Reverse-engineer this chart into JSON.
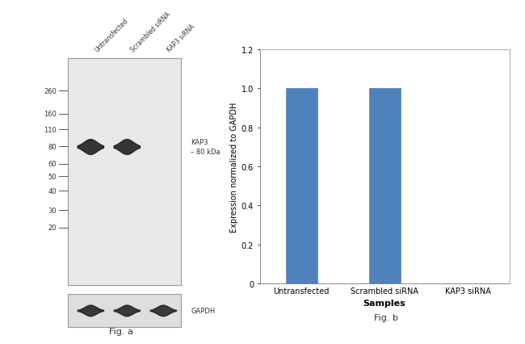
{
  "fig_a_label": "Fig. a",
  "fig_b_label": "Fig. b",
  "bar_categories": [
    "Untransfected",
    "Scrambled siRNA",
    "KAP3 siRNA"
  ],
  "bar_values": [
    1.0,
    1.0,
    0.0
  ],
  "bar_color": "#4F81BD",
  "ylabel": "Expression normalized to GAPDH",
  "xlabel": "Samples",
  "ylim": [
    0,
    1.2
  ],
  "yticks": [
    0,
    0.2,
    0.4,
    0.6,
    0.8,
    1.0,
    1.2
  ],
  "wb_marker_labels": [
    "260",
    "160",
    "110",
    "80",
    "60",
    "50",
    "40",
    "30",
    "20"
  ],
  "wb_marker_y": [
    0.855,
    0.755,
    0.685,
    0.61,
    0.535,
    0.48,
    0.415,
    0.33,
    0.255
  ],
  "kap3_label": "KAP3\n– 80 kDa",
  "gapdh_label": "GAPDH",
  "lane_labels": [
    "Untransfected",
    "Scrambled siRNA",
    "KAP3 siRNA"
  ],
  "gel_bg": "#e8e8e8",
  "gel_border": "#999999",
  "band_color": "#1c1c1c",
  "gapdh_bg": "#dedede"
}
